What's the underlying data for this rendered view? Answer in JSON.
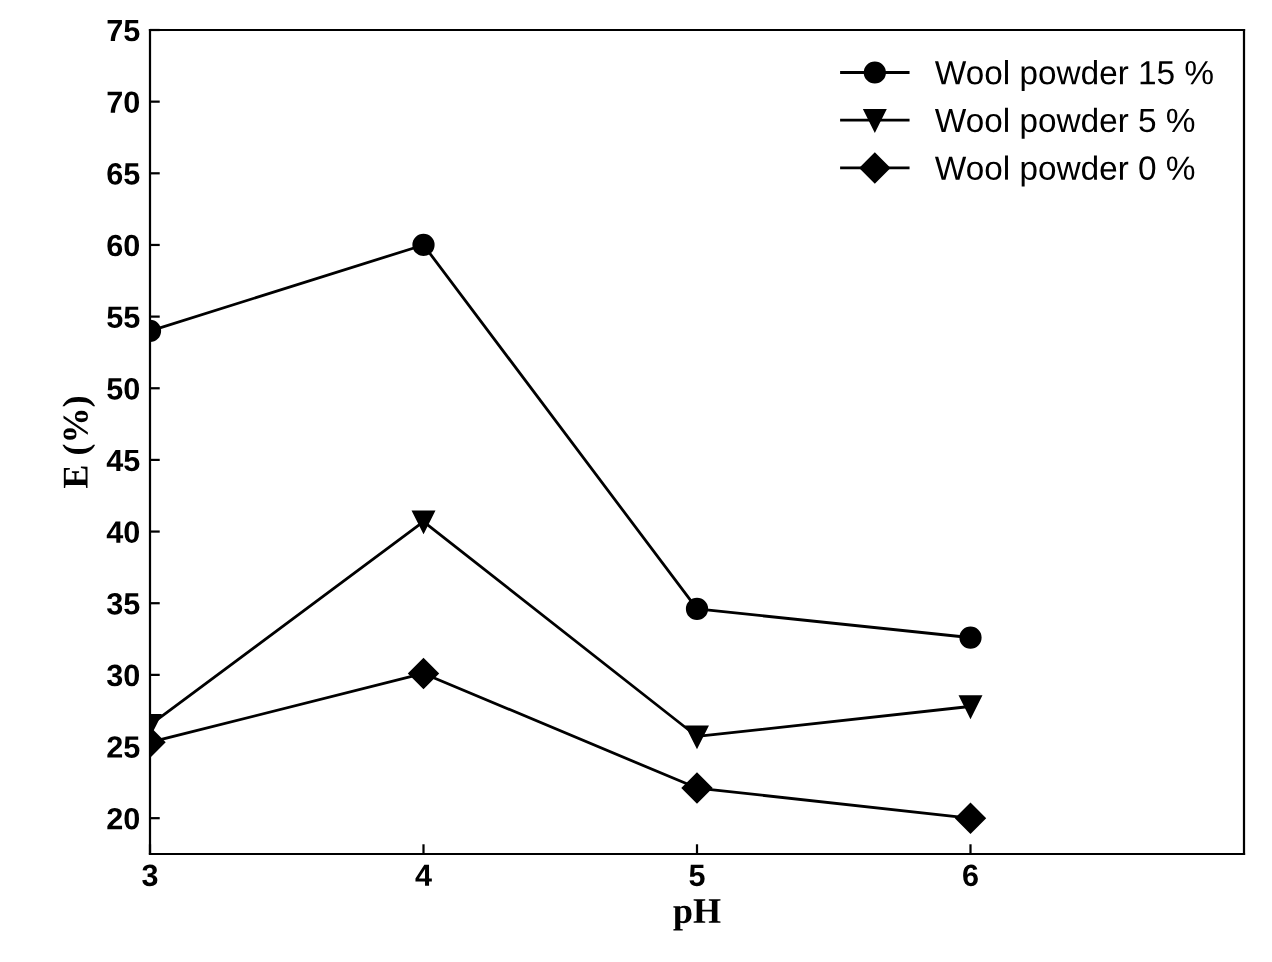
{
  "chart_data": {
    "type": "line",
    "xlabel": "pH",
    "ylabel": "E (%)",
    "x": [
      3,
      4,
      5,
      6
    ],
    "series": [
      {
        "name": "Wool powder 15 %",
        "color": "#000000",
        "marker": "circle",
        "values": [
          54.0,
          60.0,
          34.6,
          32.6
        ]
      },
      {
        "name": "Wool powder 5 %",
        "color": "#000000",
        "marker": "triangle",
        "values": [
          26.5,
          40.7,
          25.7,
          27.8
        ]
      },
      {
        "name": "Wool powder 0 %",
        "color": "#000000",
        "marker": "diamond",
        "values": [
          25.3,
          30.1,
          22.1,
          20.0
        ]
      }
    ],
    "xlim": [
      3,
      7
    ],
    "xticks": [
      3,
      4,
      5,
      6
    ],
    "ylim": [
      17.5,
      75
    ],
    "yticks": [
      20,
      25,
      30,
      35,
      40,
      45,
      50,
      55,
      60,
      65,
      70,
      75
    ],
    "grid": false,
    "legend": "top right",
    "line_style": "solid"
  }
}
